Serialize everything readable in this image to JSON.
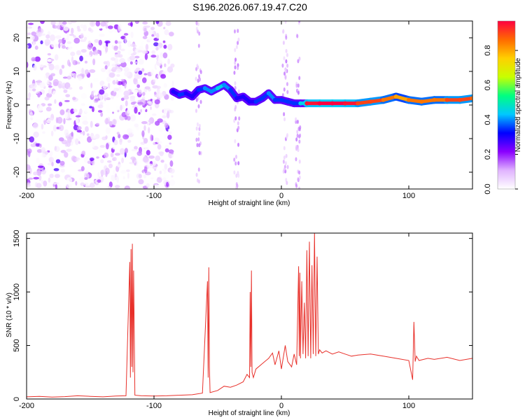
{
  "title": "S196.2026.067.19.47.C20",
  "chart_data": [
    {
      "type": "heatmap",
      "xlabel": "Height of straight line (km)",
      "ylabel": "Frequency (Hz)",
      "xlim": [
        -200,
        150
      ],
      "ylim": [
        -25,
        25
      ],
      "xticks": [
        "-200",
        "-100",
        "0",
        "100"
      ],
      "xtick_values": [
        -200,
        -100,
        0,
        100
      ],
      "yticks": [
        "20",
        "10",
        "0",
        "-10",
        "-20"
      ],
      "ytick_values": [
        20,
        10,
        0,
        -10,
        -20
      ],
      "colorbar": {
        "label": "Normalized spectral amplitude",
        "ticks": [
          "0.0",
          "0.2",
          "0.4",
          "0.6",
          "0.8"
        ],
        "tick_values": [
          0.0,
          0.2,
          0.4,
          0.6,
          0.8
        ],
        "range": [
          0,
          0.97
        ],
        "colors": [
          "#ffffff",
          "#e0b3ff",
          "#8a00ff",
          "#0000ff",
          "#00c8ff",
          "#00ff80",
          "#c8ff00",
          "#ffd000",
          "#ff6a00",
          "#ff0040"
        ]
      },
      "ridge": {
        "x": [
          -85,
          -80,
          -75,
          -70,
          -65,
          -60,
          -55,
          -50,
          -45,
          -40,
          -35,
          -30,
          -25,
          -20,
          -15,
          -10,
          -5,
          0,
          5,
          10,
          15,
          20,
          30,
          40,
          50,
          60,
          70,
          80,
          90,
          100,
          110,
          120,
          130,
          140,
          150
        ],
        "y": [
          4,
          3,
          3.5,
          2.5,
          4.5,
          5,
          4,
          5,
          6,
          4.5,
          2,
          2.5,
          1,
          1,
          2,
          3.5,
          1.5,
          1.5,
          1,
          0.5,
          0.5,
          0.5,
          0.5,
          0.5,
          0.5,
          0.5,
          1,
          1.5,
          2.5,
          1.5,
          1,
          1.5,
          1.5,
          1.5,
          2
        ],
        "amplitude": [
          0.3,
          0.35,
          0.3,
          0.3,
          0.35,
          0.4,
          0.4,
          0.45,
          0.4,
          0.35,
          0.3,
          0.3,
          0.3,
          0.35,
          0.35,
          0.4,
          0.35,
          0.35,
          0.35,
          0.35,
          0.45,
          0.95,
          0.97,
          0.97,
          0.95,
          0.9,
          0.9,
          0.85,
          0.8,
          0.85,
          0.85,
          0.85,
          0.9,
          0.9,
          0.85
        ]
      },
      "noise_region_x": [
        -200,
        -85
      ]
    },
    {
      "type": "line",
      "xlabel": "Height of straight line (km)",
      "ylabel": "SNR (10 * v/v)",
      "xlim": [
        -200,
        150
      ],
      "ylim": [
        0,
        1550
      ],
      "xticks": [
        "-200",
        "-100",
        "0",
        "100"
      ],
      "xtick_values": [
        -200,
        -100,
        0,
        100
      ],
      "yticks": [
        "0",
        "500",
        "1000",
        "1500"
      ],
      "ytick_values": [
        0,
        500,
        1000,
        1500
      ],
      "series": [
        {
          "color": "#e8302a",
          "x": [
            -200,
            -190,
            -180,
            -170,
            -160,
            -150,
            -140,
            -130,
            -122,
            -119,
            -118.5,
            -118,
            -117.5,
            -117,
            -116.5,
            -116,
            -115,
            -110,
            -100,
            -90,
            -80,
            -70,
            -62,
            -58,
            -57.5,
            -57,
            -56.5,
            -56,
            -50,
            -45,
            -40,
            -35,
            -30,
            -27,
            -25,
            -24.5,
            -24,
            -23.5,
            -23,
            -22,
            -20,
            -15,
            -10,
            -7,
            -5,
            -2,
            0,
            3,
            5,
            8,
            10,
            12,
            13.5,
            14,
            14.5,
            15,
            16,
            17,
            18,
            19,
            20,
            21,
            22,
            23,
            24,
            25,
            26,
            27,
            28,
            29,
            30,
            32,
            35,
            40,
            45,
            50,
            55,
            60,
            70,
            80,
            90,
            100,
            103,
            104,
            105,
            106,
            108,
            115,
            120,
            130,
            140,
            150
          ],
          "y": [
            20,
            25,
            18,
            22,
            30,
            25,
            20,
            28,
            30,
            1280,
            200,
            1400,
            300,
            1450,
            250,
            1200,
            35,
            30,
            28,
            30,
            35,
            40,
            55,
            1100,
            200,
            1230,
            300,
            60,
            80,
            120,
            110,
            130,
            160,
            230,
            200,
            1000,
            300,
            1200,
            250,
            200,
            280,
            330,
            380,
            430,
            320,
            450,
            280,
            500,
            350,
            300,
            420,
            320,
            1240,
            400,
            1180,
            380,
            1100,
            420,
            900,
            380,
            1390,
            400,
            1470,
            380,
            1250,
            420,
            1560,
            400,
            1330,
            420,
            460,
            430,
            450,
            420,
            440,
            420,
            400,
            410,
            420,
            400,
            380,
            360,
            180,
            720,
            350,
            400,
            360,
            380,
            370,
            390,
            360,
            380
          ]
        }
      ]
    }
  ]
}
